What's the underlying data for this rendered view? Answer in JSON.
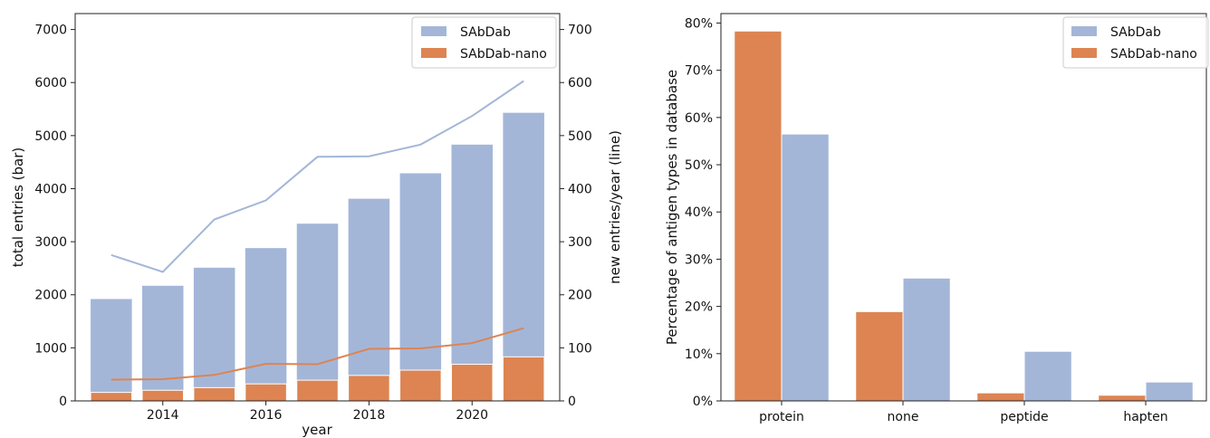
{
  "colors": {
    "sabdab": "#A4B6D8",
    "nano": "#DD8452"
  },
  "chart_data": [
    {
      "type": "bar",
      "title": "",
      "xlabel": "year",
      "ylabel": "total entries (bar)",
      "y2label": "new entries/year (line)",
      "x": [
        2013,
        2014,
        2015,
        2016,
        2017,
        2018,
        2019,
        2020,
        2021
      ],
      "xticks": [
        "2014",
        "2016",
        "2018",
        "2020"
      ],
      "ylim": [
        0,
        7300
      ],
      "yticks": [
        "0",
        "1000",
        "2000",
        "3000",
        "4000",
        "5000",
        "6000",
        "7000"
      ],
      "y2lim": [
        0,
        730
      ],
      "y2ticks": [
        "0",
        "100",
        "200",
        "300",
        "400",
        "500",
        "600",
        "700"
      ],
      "legend_position": "top-right",
      "series": [
        {
          "name": "SAbDab",
          "kind": "bar",
          "values": [
            1920,
            2170,
            2510,
            2880,
            3340,
            3810,
            4290,
            4830,
            5430
          ]
        },
        {
          "name": "SAbDab-nano",
          "kind": "bar",
          "values": [
            160,
            200,
            250,
            320,
            390,
            480,
            580,
            690,
            830
          ]
        },
        {
          "name": "SAbDab",
          "kind": "line",
          "axis": "right",
          "values": [
            275,
            243,
            342,
            378,
            460,
            461,
            483,
            537,
            603
          ]
        },
        {
          "name": "SAbDab-nano",
          "kind": "line",
          "axis": "right",
          "values": [
            40,
            41,
            49,
            70,
            69,
            98,
            99,
            109,
            137
          ]
        }
      ]
    },
    {
      "type": "bar",
      "title": "",
      "xlabel": "",
      "ylabel": "Percentage of antigen types in database",
      "categories": [
        "protein",
        "none",
        "peptide",
        "hapten"
      ],
      "ylim": [
        0,
        82
      ],
      "yticks": [
        "0%",
        "10%",
        "20%",
        "30%",
        "40%",
        "50%",
        "60%",
        "70%",
        "80%"
      ],
      "legend_position": "top-right",
      "series": [
        {
          "name": "SAbDab-nano",
          "values": [
            78.3,
            18.9,
            1.7,
            1.2
          ]
        },
        {
          "name": "SAbDab",
          "values": [
            56.5,
            26.0,
            10.5,
            4.0
          ]
        }
      ]
    }
  ]
}
